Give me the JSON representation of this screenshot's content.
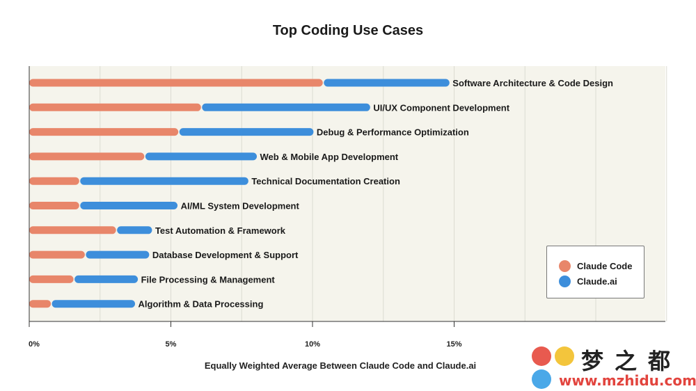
{
  "chart_data": {
    "type": "bar",
    "stacked": true,
    "orientation": "horizontal",
    "title": "Top Coding Use Cases",
    "xlabel": "Equally Weighted Average Between Claude Code and Claude.ai",
    "ylabel": "",
    "xlim": [
      0,
      22.5
    ],
    "xticks": [
      0,
      5,
      10,
      15
    ],
    "xtick_labels": [
      "0%",
      "5%",
      "10%",
      "15%"
    ],
    "grid": true,
    "legend_position": "bottom-right",
    "categories": [
      "Software Architecture & Code Design",
      "UI/UX Component Development",
      "Debug & Performance Optimization",
      "Web & Mobile App Development",
      "Technical Documentation Creation",
      "AI/ML System Development",
      "Test Automation & Framework",
      "Database Development & Support",
      "File Processing & Management",
      "Algorithm & Data Processing"
    ],
    "series": [
      {
        "name": "Claude Code",
        "color": "#e8866a",
        "values": [
          10.4,
          6.1,
          5.3,
          4.1,
          1.8,
          1.8,
          3.1,
          2.0,
          1.6,
          0.8
        ]
      },
      {
        "name": "Claude.ai",
        "color": "#3d8edb",
        "values": [
          4.3,
          5.8,
          4.6,
          3.8,
          5.8,
          3.3,
          1.1,
          2.1,
          2.1,
          2.8
        ]
      }
    ]
  },
  "watermark": {
    "name_cn": "梦之都",
    "url": "www.mzhidu.com"
  }
}
